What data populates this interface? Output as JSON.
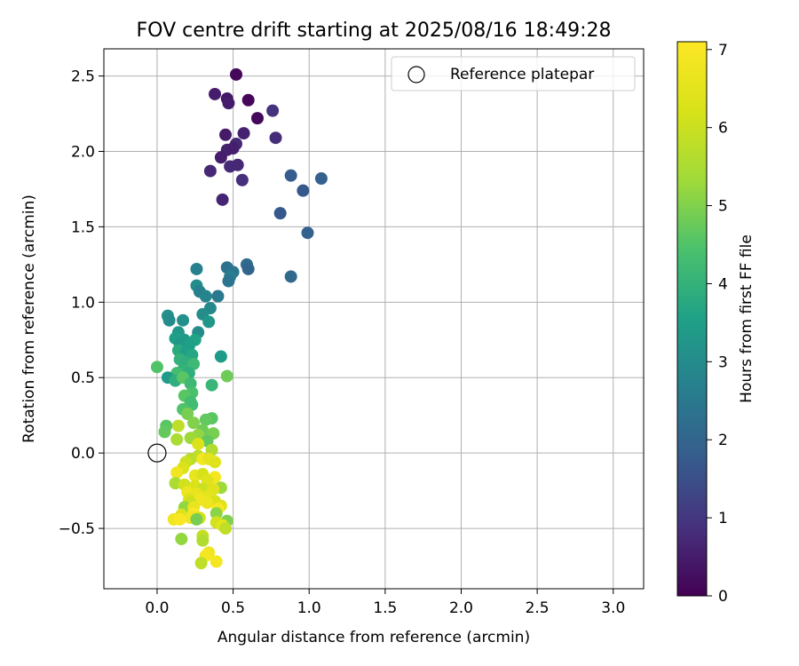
{
  "chart_data": {
    "type": "scatter",
    "title": "FOV centre drift starting at 2025/08/16 18:49:28",
    "xlabel": "Angular distance from reference (arcmin)",
    "ylabel": "Rotation from reference (arcmin)",
    "xlim": [
      -0.35,
      3.2
    ],
    "ylim": [
      -0.9,
      2.68
    ],
    "xticks": [
      "0.0",
      "0.5",
      "1.0",
      "1.5",
      "2.0",
      "2.5",
      "3.0"
    ],
    "xtick_values": [
      0,
      0.5,
      1,
      1.5,
      2,
      2.5,
      3
    ],
    "yticks": [
      "−0.5",
      "0.0",
      "0.5",
      "1.0",
      "1.5",
      "2.0",
      "2.5"
    ],
    "ytick_values": [
      -0.5,
      0,
      0.5,
      1,
      1.5,
      2,
      2.5
    ],
    "grid": true,
    "legend": {
      "placement": "upper-right",
      "label": "Reference platepar",
      "marker": "open-circle"
    },
    "reference_point": {
      "x": 0.0,
      "y": 0.0
    },
    "colorbar": {
      "label": "Hours from first FF file",
      "range": [
        0,
        7.1
      ],
      "ticks": [
        "0",
        "1",
        "2",
        "3",
        "4",
        "5",
        "6",
        "7"
      ],
      "tick_values": [
        0,
        1,
        2,
        3,
        4,
        5,
        6,
        7
      ],
      "colormap": "viridis"
    },
    "points": [
      {
        "x": 0.52,
        "y": 2.51,
        "t": 0.15
      },
      {
        "x": 0.38,
        "y": 2.38,
        "t": 0.5
      },
      {
        "x": 0.46,
        "y": 2.35,
        "t": 0.4
      },
      {
        "x": 0.6,
        "y": 2.34,
        "t": 0.1
      },
      {
        "x": 0.47,
        "y": 2.32,
        "t": 0.5
      },
      {
        "x": 0.76,
        "y": 2.27,
        "t": 0.9
      },
      {
        "x": 0.66,
        "y": 2.22,
        "t": 0.15
      },
      {
        "x": 0.57,
        "y": 2.12,
        "t": 0.6
      },
      {
        "x": 0.45,
        "y": 2.11,
        "t": 0.45
      },
      {
        "x": 0.78,
        "y": 2.09,
        "t": 0.8
      },
      {
        "x": 0.52,
        "y": 2.05,
        "t": 0.7
      },
      {
        "x": 0.46,
        "y": 2.01,
        "t": 0.6
      },
      {
        "x": 0.5,
        "y": 2.02,
        "t": 0.55
      },
      {
        "x": 0.42,
        "y": 1.96,
        "t": 0.5
      },
      {
        "x": 0.48,
        "y": 1.9,
        "t": 0.75
      },
      {
        "x": 0.53,
        "y": 1.91,
        "t": 0.7
      },
      {
        "x": 0.35,
        "y": 1.87,
        "t": 0.7
      },
      {
        "x": 0.56,
        "y": 1.81,
        "t": 0.85
      },
      {
        "x": 0.88,
        "y": 1.84,
        "t": 1.8
      },
      {
        "x": 1.08,
        "y": 1.82,
        "t": 1.9
      },
      {
        "x": 0.96,
        "y": 1.74,
        "t": 1.7
      },
      {
        "x": 0.43,
        "y": 1.68,
        "t": 0.65
      },
      {
        "x": 0.81,
        "y": 1.59,
        "t": 1.7
      },
      {
        "x": 0.99,
        "y": 1.46,
        "t": 1.9
      },
      {
        "x": 0.59,
        "y": 1.25,
        "t": 2.2
      },
      {
        "x": 0.26,
        "y": 1.22,
        "t": 2.7
      },
      {
        "x": 0.46,
        "y": 1.23,
        "t": 2.3
      },
      {
        "x": 0.5,
        "y": 1.2,
        "t": 2.4
      },
      {
        "x": 0.6,
        "y": 1.22,
        "t": 2.0
      },
      {
        "x": 0.48,
        "y": 1.17,
        "t": 2.6
      },
      {
        "x": 0.47,
        "y": 1.14,
        "t": 2.4
      },
      {
        "x": 0.88,
        "y": 1.17,
        "t": 2.1
      },
      {
        "x": 0.26,
        "y": 1.11,
        "t": 3.0
      },
      {
        "x": 0.28,
        "y": 1.07,
        "t": 2.7
      },
      {
        "x": 0.32,
        "y": 1.04,
        "t": 2.8
      },
      {
        "x": 0.4,
        "y": 1.04,
        "t": 2.5
      },
      {
        "x": 0.35,
        "y": 0.96,
        "t": 2.9
      },
      {
        "x": 0.3,
        "y": 0.92,
        "t": 3.0
      },
      {
        "x": 0.07,
        "y": 0.91,
        "t": 3.1
      },
      {
        "x": 0.08,
        "y": 0.88,
        "t": 3.0
      },
      {
        "x": 0.17,
        "y": 0.88,
        "t": 3.1
      },
      {
        "x": 0.34,
        "y": 0.87,
        "t": 3.3
      },
      {
        "x": 0.14,
        "y": 0.8,
        "t": 3.3
      },
      {
        "x": 0.27,
        "y": 0.8,
        "t": 3.0
      },
      {
        "x": 0.12,
        "y": 0.76,
        "t": 3.5
      },
      {
        "x": 0.18,
        "y": 0.75,
        "t": 3.4
      },
      {
        "x": 0.25,
        "y": 0.75,
        "t": 3.6
      },
      {
        "x": 0.15,
        "y": 0.72,
        "t": 3.3
      },
      {
        "x": 0.21,
        "y": 0.71,
        "t": 3.5
      },
      {
        "x": 0.14,
        "y": 0.68,
        "t": 3.8
      },
      {
        "x": 0.19,
        "y": 0.67,
        "t": 3.5
      },
      {
        "x": 0.23,
        "y": 0.65,
        "t": 3.7
      },
      {
        "x": 0.42,
        "y": 0.64,
        "t": 3.4
      },
      {
        "x": 0.15,
        "y": 0.62,
        "t": 4.0
      },
      {
        "x": 0.19,
        "y": 0.6,
        "t": 3.9
      },
      {
        "x": 0.24,
        "y": 0.59,
        "t": 4.2
      },
      {
        "x": 0.17,
        "y": 0.55,
        "t": 4.0
      },
      {
        "x": 0.0,
        "y": 0.57,
        "t": 4.5
      },
      {
        "x": 0.13,
        "y": 0.53,
        "t": 4.3
      },
      {
        "x": 0.21,
        "y": 0.53,
        "t": 3.9
      },
      {
        "x": 0.07,
        "y": 0.5,
        "t": 3.4
      },
      {
        "x": 0.12,
        "y": 0.48,
        "t": 3.9
      },
      {
        "x": 0.17,
        "y": 0.5,
        "t": 4.6
      },
      {
        "x": 0.46,
        "y": 0.51,
        "t": 4.8
      },
      {
        "x": 0.36,
        "y": 0.45,
        "t": 4.1
      },
      {
        "x": 0.22,
        "y": 0.46,
        "t": 4.2
      },
      {
        "x": 0.23,
        "y": 0.4,
        "t": 4.4
      },
      {
        "x": 0.18,
        "y": 0.38,
        "t": 4.6
      },
      {
        "x": 0.22,
        "y": 0.34,
        "t": 4.3
      },
      {
        "x": 0.23,
        "y": 0.32,
        "t": 4.3
      },
      {
        "x": 0.17,
        "y": 0.29,
        "t": 4.5
      },
      {
        "x": 0.2,
        "y": 0.26,
        "t": 4.9
      },
      {
        "x": 0.36,
        "y": 0.23,
        "t": 4.6
      },
      {
        "x": 0.32,
        "y": 0.22,
        "t": 4.7
      },
      {
        "x": 0.24,
        "y": 0.2,
        "t": 5.0
      },
      {
        "x": 0.06,
        "y": 0.18,
        "t": 4.6
      },
      {
        "x": 0.14,
        "y": 0.18,
        "t": 5.8
      },
      {
        "x": 0.05,
        "y": 0.14,
        "t": 4.7
      },
      {
        "x": 0.3,
        "y": 0.15,
        "t": 4.8
      },
      {
        "x": 0.37,
        "y": 0.13,
        "t": 4.9
      },
      {
        "x": 0.27,
        "y": 0.12,
        "t": 5.2
      },
      {
        "x": 0.22,
        "y": 0.1,
        "t": 5.3
      },
      {
        "x": 0.13,
        "y": 0.09,
        "t": 5.5
      },
      {
        "x": 0.33,
        "y": 0.08,
        "t": 4.7
      },
      {
        "x": 0.27,
        "y": 0.06,
        "t": 6.3
      },
      {
        "x": 0.36,
        "y": 0.02,
        "t": 5.6
      },
      {
        "x": 0.27,
        "y": -0.02,
        "t": 5.8
      },
      {
        "x": 0.22,
        "y": -0.04,
        "t": 5.7
      },
      {
        "x": 0.3,
        "y": -0.04,
        "t": 6.9
      },
      {
        "x": 0.34,
        "y": -0.04,
        "t": 6.5
      },
      {
        "x": 0.38,
        "y": -0.06,
        "t": 6.4
      },
      {
        "x": 0.19,
        "y": -0.06,
        "t": 6.0
      },
      {
        "x": 0.17,
        "y": -0.1,
        "t": 6.3
      },
      {
        "x": 0.13,
        "y": -0.13,
        "t": 6.8
      },
      {
        "x": 0.25,
        "y": -0.15,
        "t": 6.6
      },
      {
        "x": 0.3,
        "y": -0.14,
        "t": 6.2
      },
      {
        "x": 0.38,
        "y": -0.16,
        "t": 6.9
      },
      {
        "x": 0.33,
        "y": -0.18,
        "t": 6.4
      },
      {
        "x": 0.12,
        "y": -0.2,
        "t": 5.5
      },
      {
        "x": 0.18,
        "y": -0.21,
        "t": 6.1
      },
      {
        "x": 0.25,
        "y": -0.22,
        "t": 6.3
      },
      {
        "x": 0.3,
        "y": -0.24,
        "t": 6.0
      },
      {
        "x": 0.42,
        "y": -0.23,
        "t": 5.3
      },
      {
        "x": 0.37,
        "y": -0.24,
        "t": 6.4
      },
      {
        "x": 0.2,
        "y": -0.26,
        "t": 6.7
      },
      {
        "x": 0.26,
        "y": -0.27,
        "t": 6.6
      },
      {
        "x": 0.32,
        "y": -0.29,
        "t": 6.5
      },
      {
        "x": 0.21,
        "y": -0.31,
        "t": 6.3
      },
      {
        "x": 0.28,
        "y": -0.31,
        "t": 6.8
      },
      {
        "x": 0.38,
        "y": -0.32,
        "t": 6.2
      },
      {
        "x": 0.22,
        "y": -0.33,
        "t": 6.0
      },
      {
        "x": 0.33,
        "y": -0.33,
        "t": 6.7
      },
      {
        "x": 0.18,
        "y": -0.36,
        "t": 5.2
      },
      {
        "x": 0.24,
        "y": -0.36,
        "t": 6.6
      },
      {
        "x": 0.42,
        "y": -0.35,
        "t": 6.4
      },
      {
        "x": 0.4,
        "y": -0.37,
        "t": 6.9
      },
      {
        "x": 0.39,
        "y": -0.4,
        "t": 5.1
      },
      {
        "x": 0.24,
        "y": -0.4,
        "t": 7.0
      },
      {
        "x": 0.16,
        "y": -0.41,
        "t": 6.3
      },
      {
        "x": 0.22,
        "y": -0.43,
        "t": 6.8
      },
      {
        "x": 0.28,
        "y": -0.43,
        "t": 6.2
      },
      {
        "x": 0.11,
        "y": -0.44,
        "t": 6.8
      },
      {
        "x": 0.15,
        "y": -0.44,
        "t": 7.0
      },
      {
        "x": 0.26,
        "y": -0.44,
        "t": 4.9
      },
      {
        "x": 0.39,
        "y": -0.46,
        "t": 6.1
      },
      {
        "x": 0.46,
        "y": -0.45,
        "t": 5.0
      },
      {
        "x": 0.43,
        "y": -0.48,
        "t": 6.5
      },
      {
        "x": 0.45,
        "y": -0.5,
        "t": 5.8
      },
      {
        "x": 0.3,
        "y": -0.55,
        "t": 5.9
      },
      {
        "x": 0.3,
        "y": -0.58,
        "t": 5.6
      },
      {
        "x": 0.16,
        "y": -0.57,
        "t": 5.2
      },
      {
        "x": 0.34,
        "y": -0.66,
        "t": 6.8
      },
      {
        "x": 0.32,
        "y": -0.68,
        "t": 6.9
      },
      {
        "x": 0.29,
        "y": -0.73,
        "t": 5.8
      },
      {
        "x": 0.39,
        "y": -0.72,
        "t": 6.9
      }
    ]
  }
}
